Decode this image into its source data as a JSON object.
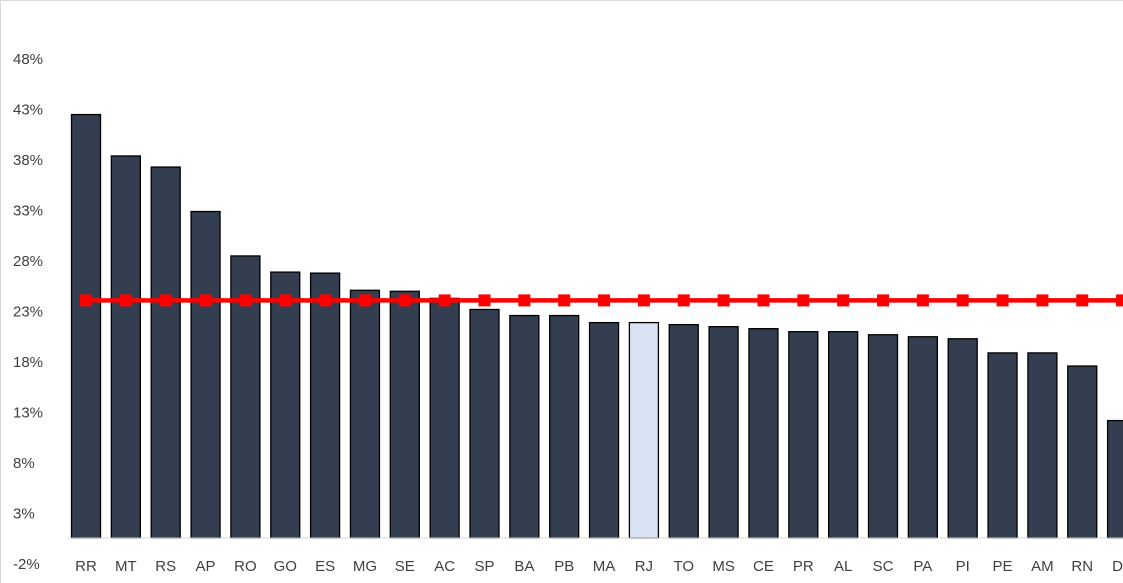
{
  "chart_data": {
    "type": "bar",
    "categories": [
      "RR",
      "MT",
      "RS",
      "AP",
      "RO",
      "GO",
      "ES",
      "MG",
      "SE",
      "AC",
      "SP",
      "BA",
      "PB",
      "MA",
      "RJ",
      "TO",
      "MS",
      "CE",
      "PR",
      "AL",
      "SC",
      "PA",
      "PI",
      "PE",
      "AM",
      "RN",
      "DF"
    ],
    "series": [
      {
        "type": "bar",
        "values": [
          42.5,
          38.4,
          37.3,
          32.9,
          28.5,
          26.9,
          26.8,
          25.1,
          25.0,
          24.3,
          23.2,
          22.6,
          22.6,
          21.9,
          21.9,
          21.7,
          21.5,
          21.3,
          21.0,
          21.0,
          20.7,
          20.5,
          20.3,
          18.9,
          18.9,
          17.6,
          12.2
        ],
        "color": "#333f50",
        "highlight": {
          "category": "RJ",
          "color": "#dae3f3"
        }
      },
      {
        "type": "line",
        "values": [
          24.1,
          24.1,
          24.1,
          24.1,
          24.1,
          24.1,
          24.1,
          24.1,
          24.1,
          24.1,
          24.1,
          24.1,
          24.1,
          24.1,
          24.1,
          24.1,
          24.1,
          24.1,
          24.1,
          24.1,
          24.1,
          24.1,
          24.1,
          24.1,
          24.1,
          24.1,
          24.1
        ],
        "color": "#ff0000",
        "marker": "square"
      }
    ],
    "yticks": [
      "-2%",
      "3%",
      "8%",
      "13%",
      "18%",
      "23%",
      "28%",
      "33%",
      "38%",
      "43%",
      "48%"
    ],
    "ytick_values": [
      -2,
      3,
      8,
      13,
      18,
      23,
      28,
      33,
      38,
      43,
      48
    ],
    "ylim": [
      -2,
      48
    ],
    "grid": false,
    "legend": "none"
  }
}
